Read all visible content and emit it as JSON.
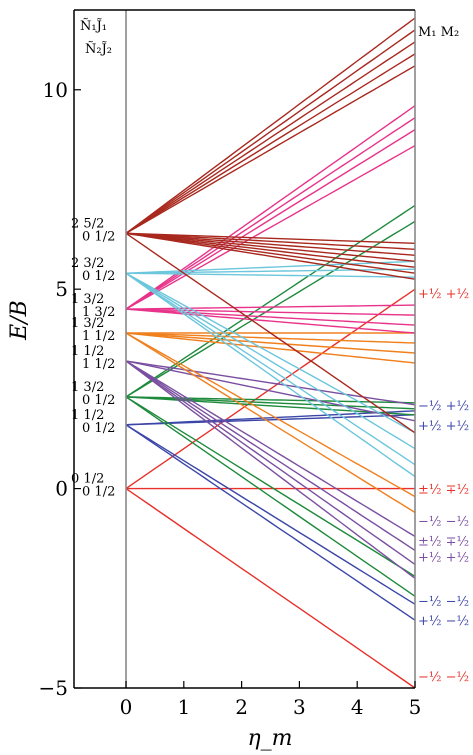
{
  "chart_data": {
    "type": "line",
    "title": "",
    "xlabel": "η_m",
    "ylabel": "E/B",
    "xlim": [
      -0.9,
      5.0
    ],
    "ylim": [
      -5.0,
      12.0
    ],
    "x_ticks": [
      "0",
      "1",
      "2",
      "3",
      "4",
      "5"
    ],
    "y_ticks": [
      "−5",
      "0",
      "5",
      "10"
    ],
    "y_tick_values": [
      -5,
      0,
      5,
      10
    ],
    "grid": false,
    "legend": "none",
    "header_left": [
      "Ñ₁J̃₁",
      "Ñ₂J̃₂"
    ],
    "header_right": "M₁ M₂",
    "colors": {
      "red": "#e8312a",
      "blue": "#3b46a8",
      "green": "#1e8a3c",
      "purple": "#7a4fa0",
      "orange": "#f0801e",
      "pink": "#e8338a",
      "cyan": "#6cc6dc",
      "darkred": "#a8281e",
      "axis": "#888888"
    },
    "state_labels": [
      {
        "y": 0.0,
        "lines": [
          "0 1/2",
          "0 1/2"
        ]
      },
      {
        "y": 1.6,
        "lines": [
          "1 1/2",
          "0 1/2"
        ]
      },
      {
        "y": 2.3,
        "lines": [
          "1 3/2",
          "0 1/2"
        ]
      },
      {
        "y": 3.2,
        "lines": [
          "1 1/2",
          "1 1/2"
        ]
      },
      {
        "y": 3.9,
        "lines": [
          "1 3/2",
          "1 1/2"
        ]
      },
      {
        "y": 4.5,
        "lines": [
          "1 3/2",
          "1 3/2"
        ]
      },
      {
        "y": 5.4,
        "lines": [
          "2 3/2",
          "0 1/2"
        ]
      },
      {
        "y": 6.4,
        "lines": [
          "2 5/2",
          "0 1/2"
        ]
      }
    ],
    "right_labels": [
      {
        "y": 4.9,
        "text": "+½ +½",
        "color": "red"
      },
      {
        "y": 2.1,
        "text": "−½ +½",
        "color": "blue"
      },
      {
        "y": 1.6,
        "text": "+½ +½",
        "color": "blue"
      },
      {
        "y": 0.0,
        "text": "±½ ∓½",
        "color": "red"
      },
      {
        "y": -0.8,
        "text": "−½ −½",
        "color": "purple"
      },
      {
        "y": -1.3,
        "text": "±½ ∓½",
        "color": "purple"
      },
      {
        "y": -1.7,
        "text": "+½ +½",
        "color": "purple"
      },
      {
        "y": -2.8,
        "text": "−½ −½",
        "color": "blue"
      },
      {
        "y": -3.3,
        "text": "+½ −½",
        "color": "blue"
      },
      {
        "y": -4.7,
        "text": "−½ −½",
        "color": "red"
      }
    ],
    "series": [
      {
        "color": "red",
        "y0": 0.0,
        "slopes": [
          1.0,
          0.0,
          -1.0
        ]
      },
      {
        "color": "blue",
        "y0": 1.6,
        "slopes": [
          0.07,
          0.05,
          -0.9,
          -0.98
        ]
      },
      {
        "color": "green",
        "y0": 2.3,
        "slopes": [
          -0.03,
          -0.06,
          -0.09,
          -0.9,
          -1.0,
          0.88,
          0.96
        ]
      },
      {
        "color": "purple",
        "y0": 3.2,
        "slopes": [
          -0.88,
          -0.95,
          -1.02,
          -1.09,
          -0.22,
          -0.3
        ]
      },
      {
        "color": "orange",
        "y0": 3.9,
        "slopes": [
          0.0,
          -0.05,
          -0.1,
          -0.15,
          -0.82,
          -0.9
        ]
      },
      {
        "color": "pink",
        "y0": 4.5,
        "slopes": [
          0.02,
          -0.03,
          -0.08,
          -0.12,
          0.82,
          0.9,
          0.96,
          1.02
        ]
      },
      {
        "color": "cyan",
        "y0": 5.4,
        "slopes": [
          0.06,
          0.02,
          -0.02,
          -0.8,
          -0.88,
          -0.96,
          -1.02
        ]
      },
      {
        "color": "darkred",
        "y0": 6.4,
        "slopes": [
          -0.05,
          -0.08,
          -0.11,
          -0.14,
          -0.17,
          -0.2,
          -0.23,
          0.84,
          0.9,
          0.96,
          1.02,
          1.08,
          -1.0
        ]
      }
    ]
  }
}
